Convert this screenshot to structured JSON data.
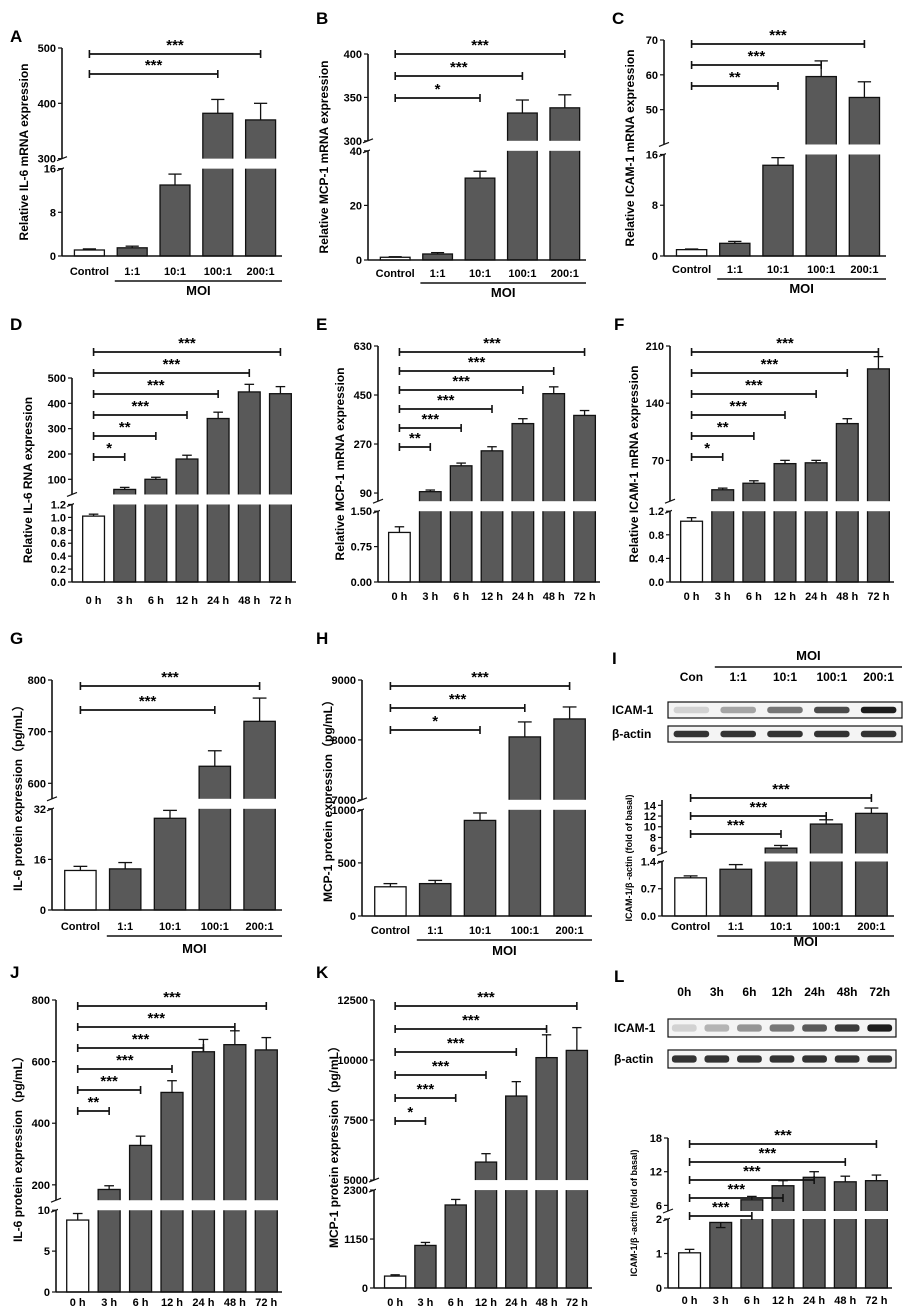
{
  "chart_data": [
    {
      "panel": "A",
      "type": "bar",
      "ylabel": "Relative  IL-6  mRNA expression",
      "categories": [
        "Control",
        "1:1",
        "10:1",
        "100:1",
        "200:1"
      ],
      "group_label": "MOI",
      "group_start": 1,
      "values": [
        1.1,
        1.5,
        13,
        382,
        370
      ],
      "errors": [
        0.2,
        0.3,
        2,
        25,
        30
      ],
      "segments": [
        {
          "range": [
            0,
            16
          ],
          "ticks": [
            0,
            8,
            16
          ]
        },
        {
          "range": [
            300,
            500
          ],
          "ticks": [
            300,
            400,
            500
          ]
        }
      ],
      "significance": [
        {
          "from": 0,
          "to": 4,
          "label": "***"
        },
        {
          "from": 0,
          "to": 3,
          "label": "***"
        }
      ]
    },
    {
      "panel": "B",
      "type": "bar",
      "ylabel": "Relative MCP-1  mRNA expression",
      "categories": [
        "Control",
        "1:1",
        "10:1",
        "100:1",
        "200:1"
      ],
      "group_label": "MOI",
      "group_start": 1,
      "values": [
        1,
        2.2,
        30,
        332,
        338
      ],
      "errors": [
        0.2,
        0.5,
        2.5,
        15,
        15
      ],
      "segments": [
        {
          "range": [
            0,
            40
          ],
          "ticks": [
            0,
            20,
            40
          ]
        },
        {
          "range": [
            300,
            400
          ],
          "ticks": [
            300,
            350,
            400
          ]
        }
      ],
      "significance": [
        {
          "from": 0,
          "to": 4,
          "label": "***"
        },
        {
          "from": 0,
          "to": 3,
          "label": "***"
        },
        {
          "from": 0,
          "to": 2,
          "label": "*"
        }
      ]
    },
    {
      "panel": "C",
      "type": "bar",
      "ylabel": "Relative ICAM-1  mRNA expression",
      "categories": [
        "Control",
        "1:1",
        "10:1",
        "100:1",
        "200:1"
      ],
      "group_label": "MOI",
      "group_start": 1,
      "values": [
        1,
        2,
        14.3,
        59.5,
        53.5
      ],
      "errors": [
        0.1,
        0.3,
        1.2,
        4.5,
        4.5
      ],
      "segments": [
        {
          "range": [
            0,
            16
          ],
          "ticks": [
            0,
            8,
            16
          ]
        },
        {
          "range": [
            40,
            70
          ],
          "ticks": [
            50,
            60,
            70
          ]
        }
      ],
      "significance": [
        {
          "from": 0,
          "to": 4,
          "label": "***"
        },
        {
          "from": 0,
          "to": 3,
          "label": "***"
        },
        {
          "from": 0,
          "to": 2,
          "label": "**"
        }
      ]
    },
    {
      "panel": "D",
      "type": "bar",
      "ylabel": "Relative  IL-6  RNA expression",
      "categories": [
        "0 h",
        "3 h",
        "6 h",
        "12 h",
        "24 h",
        "48 h",
        "72 h"
      ],
      "values": [
        1.02,
        60,
        100,
        180,
        340,
        445,
        438
      ],
      "errors": [
        0.03,
        8,
        8,
        15,
        25,
        30,
        28
      ],
      "segments": [
        {
          "range": [
            0,
            1.2
          ],
          "ticks": [
            0.0,
            0.2,
            0.4,
            0.6,
            0.8,
            1.0,
            1.2
          ]
        },
        {
          "range": [
            40,
            500
          ],
          "ticks": [
            100,
            200,
            300,
            400,
            500
          ]
        }
      ],
      "significance": [
        {
          "from": 0,
          "to": 6,
          "label": "***"
        },
        {
          "from": 0,
          "to": 5,
          "label": "***"
        },
        {
          "from": 0,
          "to": 4,
          "label": "***"
        },
        {
          "from": 0,
          "to": 3,
          "label": "***"
        },
        {
          "from": 0,
          "to": 2,
          "label": "**"
        },
        {
          "from": 0,
          "to": 1,
          "label": "*"
        }
      ]
    },
    {
      "panel": "E",
      "type": "bar",
      "ylabel": "Relative MCP-1  mRNA expression",
      "categories": [
        "0 h",
        "3 h",
        "6 h",
        "12 h",
        "24 h",
        "48 h",
        "72 h"
      ],
      "values": [
        1.05,
        95,
        190,
        245,
        345,
        455,
        375
      ],
      "errors": [
        0.12,
        6,
        10,
        15,
        18,
        25,
        18
      ],
      "segments": [
        {
          "range": [
            0,
            1.5
          ],
          "ticks": [
            0.0,
            0.75,
            1.5
          ]
        },
        {
          "range": [
            60,
            630
          ],
          "ticks": [
            90,
            270,
            450,
            630
          ]
        }
      ],
      "significance": [
        {
          "from": 0,
          "to": 6,
          "label": "***"
        },
        {
          "from": 0,
          "to": 5,
          "label": "***"
        },
        {
          "from": 0,
          "to": 4,
          "label": "***"
        },
        {
          "from": 0,
          "to": 3,
          "label": "***"
        },
        {
          "from": 0,
          "to": 2,
          "label": "***"
        },
        {
          "from": 0,
          "to": 1,
          "label": "**"
        }
      ]
    },
    {
      "panel": "F",
      "type": "bar",
      "ylabel": "Relative ICAM-1  mRNA expression",
      "categories": [
        "0 h",
        "3 h",
        "6 h",
        "12 h",
        "24 h",
        "48 h",
        "72 h"
      ],
      "values": [
        1.03,
        34,
        42,
        66,
        67,
        115,
        182
      ],
      "errors": [
        0.06,
        2,
        3,
        4,
        3,
        6,
        15
      ],
      "segments": [
        {
          "range": [
            0,
            1.2
          ],
          "ticks": [
            0.0,
            0.4,
            0.8,
            1.2
          ]
        },
        {
          "range": [
            20,
            210
          ],
          "ticks": [
            70,
            140,
            210
          ]
        }
      ],
      "significance": [
        {
          "from": 0,
          "to": 6,
          "label": "***"
        },
        {
          "from": 0,
          "to": 5,
          "label": "***"
        },
        {
          "from": 0,
          "to": 4,
          "label": "***"
        },
        {
          "from": 0,
          "to": 3,
          "label": "***"
        },
        {
          "from": 0,
          "to": 2,
          "label": "**"
        },
        {
          "from": 0,
          "to": 1,
          "label": "*"
        }
      ]
    },
    {
      "panel": "G",
      "type": "bar",
      "ylabel": "IL-6 protein expression（pg/mL）",
      "categories": [
        "Control",
        "1:1",
        "10:1",
        "100:1",
        "200:1"
      ],
      "group_label": "MOI",
      "group_start": 1,
      "values": [
        12.5,
        13,
        29,
        633,
        720
      ],
      "errors": [
        1.3,
        2,
        2.5,
        30,
        45
      ],
      "segments": [
        {
          "range": [
            0,
            32
          ],
          "ticks": [
            0,
            16,
            32
          ]
        },
        {
          "range": [
            570,
            800
          ],
          "ticks": [
            600,
            700,
            800
          ]
        }
      ],
      "significance": [
        {
          "from": 0,
          "to": 4,
          "label": "***"
        },
        {
          "from": 0,
          "to": 3,
          "label": "***"
        }
      ]
    },
    {
      "panel": "H",
      "type": "bar",
      "ylabel": "MCP-1 protein expression（pg/mL）",
      "categories": [
        "Control",
        "1:1",
        "10:1",
        "100:1",
        "200:1"
      ],
      "group_label": "MOI",
      "group_start": 1,
      "values": [
        275,
        305,
        900,
        8050,
        8350
      ],
      "errors": [
        30,
        30,
        70,
        250,
        200
      ],
      "segments": [
        {
          "range": [
            0,
            1000
          ],
          "ticks": [
            0,
            500,
            1000
          ]
        },
        {
          "range": [
            7000,
            9000
          ],
          "ticks": [
            7000,
            8000,
            9000
          ]
        }
      ],
      "significance": [
        {
          "from": 0,
          "to": 4,
          "label": "***"
        },
        {
          "from": 0,
          "to": 3,
          "label": "***"
        },
        {
          "from": 0,
          "to": 2,
          "label": "*"
        }
      ]
    },
    {
      "panel": "I",
      "type": "bar",
      "ylabel": "ICAM-1/β -actin (fold of basal)",
      "categories": [
        "Control",
        "1:1",
        "10:1",
        "100:1",
        "200:1"
      ],
      "group_label": "MOI",
      "group_start": 1,
      "values": [
        0.98,
        1.2,
        6,
        10.5,
        12.5
      ],
      "errors": [
        0.05,
        0.12,
        0.5,
        0.8,
        1.0
      ],
      "segments": [
        {
          "range": [
            0,
            1.4
          ],
          "ticks": [
            0.0,
            0.7,
            1.4
          ]
        },
        {
          "range": [
            5,
            15
          ],
          "ticks": [
            6,
            8,
            10,
            12,
            14
          ]
        }
      ],
      "significance": [
        {
          "from": 0,
          "to": 4,
          "label": "***"
        },
        {
          "from": 0,
          "to": 3,
          "label": "***"
        },
        {
          "from": 0,
          "to": 2,
          "label": "***"
        }
      ],
      "blot": {
        "header": "MOI",
        "lanes": [
          "Con",
          "1:1",
          "10:1",
          "100:1",
          "200:1"
        ],
        "rows": [
          "ICAM-1",
          "β-actin"
        ]
      }
    },
    {
      "panel": "J",
      "type": "bar",
      "ylabel": "IL-6 protein expression（pg/mL）",
      "categories": [
        "0 h",
        "3 h",
        "6 h",
        "12 h",
        "24 h",
        "48 h",
        "72 h"
      ],
      "values": [
        8.8,
        185,
        328,
        500,
        632,
        655,
        638
      ],
      "errors": [
        0.8,
        12,
        30,
        38,
        40,
        45,
        40
      ],
      "segments": [
        {
          "range": [
            0,
            10
          ],
          "ticks": [
            0,
            5,
            10
          ]
        },
        {
          "range": [
            150,
            800
          ],
          "ticks": [
            200,
            400,
            600,
            800
          ]
        }
      ],
      "significance": [
        {
          "from": 0,
          "to": 6,
          "label": "***"
        },
        {
          "from": 0,
          "to": 5,
          "label": "***"
        },
        {
          "from": 0,
          "to": 4,
          "label": "***"
        },
        {
          "from": 0,
          "to": 3,
          "label": "***"
        },
        {
          "from": 0,
          "to": 2,
          "label": "***"
        },
        {
          "from": 0,
          "to": 1,
          "label": "**"
        }
      ]
    },
    {
      "panel": "K",
      "type": "bar",
      "ylabel": "MCP-1 protein expression（pg/mL）",
      "categories": [
        "0 h",
        "3 h",
        "6 h",
        "12 h",
        "24 h",
        "48 h",
        "72 h"
      ],
      "values": [
        280,
        1000,
        1950,
        5750,
        8500,
        10100,
        10400
      ],
      "errors": [
        30,
        70,
        130,
        350,
        600,
        950,
        950
      ],
      "segments": [
        {
          "range": [
            0,
            2300
          ],
          "ticks": [
            0,
            1150,
            2300
          ]
        },
        {
          "range": [
            5000,
            12500
          ],
          "ticks": [
            5000,
            7500,
            10000,
            12500
          ]
        }
      ],
      "significance": [
        {
          "from": 0,
          "to": 6,
          "label": "***"
        },
        {
          "from": 0,
          "to": 5,
          "label": "***"
        },
        {
          "from": 0,
          "to": 4,
          "label": "***"
        },
        {
          "from": 0,
          "to": 3,
          "label": "***"
        },
        {
          "from": 0,
          "to": 2,
          "label": "***"
        },
        {
          "from": 0,
          "to": 1,
          "label": "*"
        }
      ]
    },
    {
      "panel": "L",
      "type": "bar",
      "ylabel": "ICAM-1/β -actin (fold of basal)",
      "categories": [
        "0 h",
        "3 h",
        "6 h",
        "12 h",
        "24 h",
        "48 h",
        "72 h"
      ],
      "values": [
        1.02,
        1.9,
        7,
        9.5,
        11,
        10.2,
        10.4
      ],
      "errors": [
        0.1,
        0.15,
        0.6,
        0.9,
        1.0,
        1.0,
        1.0
      ],
      "segments": [
        {
          "range": [
            0,
            2
          ],
          "ticks": [
            0,
            1,
            2
          ]
        },
        {
          "range": [
            5,
            18
          ],
          "ticks": [
            6,
            12,
            18
          ]
        }
      ],
      "significance": [
        {
          "from": 0,
          "to": 6,
          "label": "***"
        },
        {
          "from": 0,
          "to": 5,
          "label": "***"
        },
        {
          "from": 0,
          "to": 4,
          "label": "***"
        },
        {
          "from": 0,
          "to": 3,
          "label": "***"
        },
        {
          "from": 0,
          "to": 2,
          "label": "***"
        }
      ],
      "blot": {
        "lanes": [
          "0h",
          "3h",
          "6h",
          "12h",
          "24h",
          "48h",
          "72h"
        ],
        "rows": [
          "ICAM-1",
          "β-actin"
        ]
      }
    }
  ]
}
